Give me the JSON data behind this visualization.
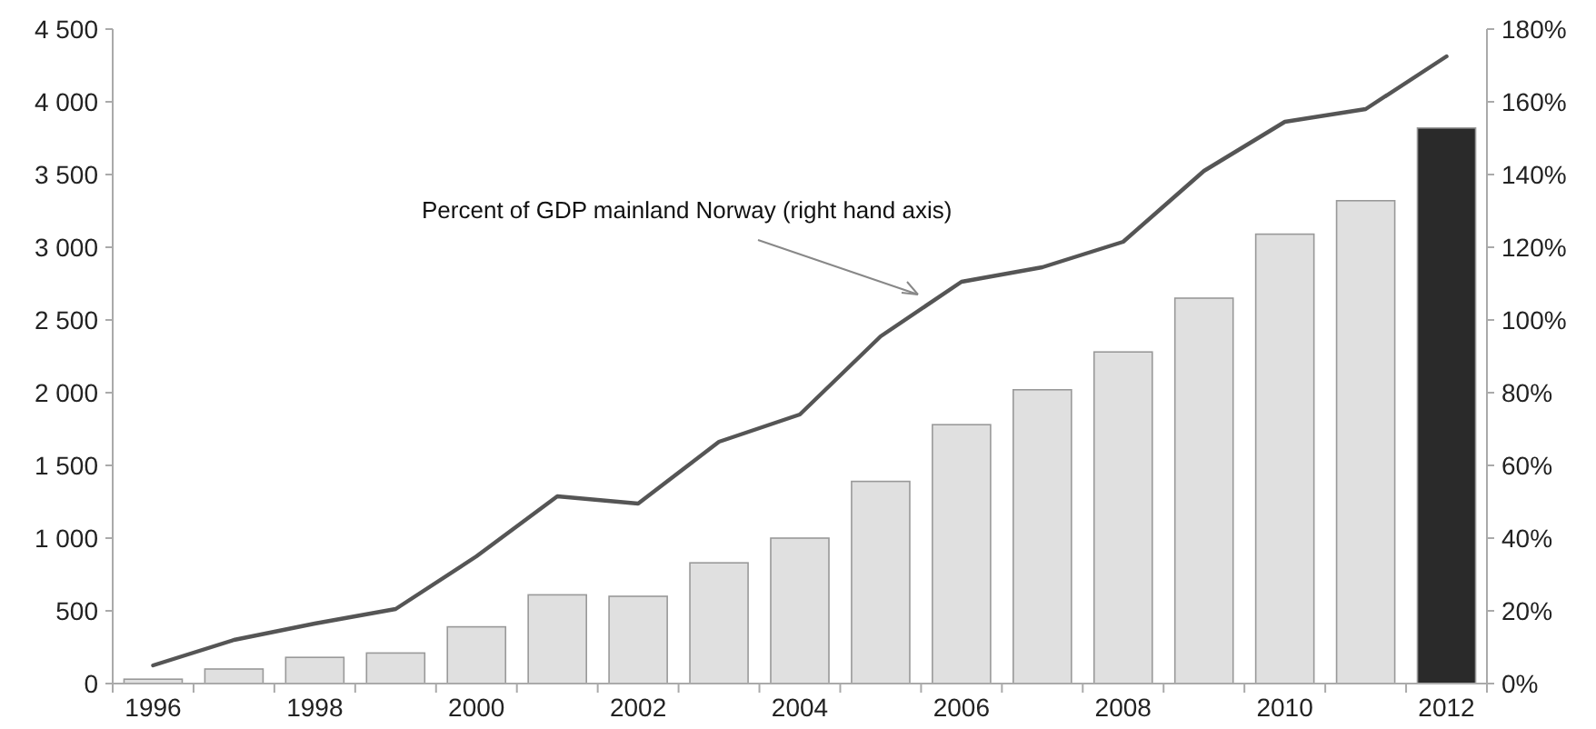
{
  "chart_data": {
    "type": "bar",
    "categories": [
      "1996",
      null,
      "1998",
      null,
      "2000",
      null,
      "2002",
      null,
      "2004",
      null,
      "2006",
      null,
      "2008",
      null,
      "2010",
      null,
      "2012"
    ],
    "series": [
      {
        "colors": [
          "#e0e0e0",
          "#e0e0e0",
          "#e0e0e0",
          "#e0e0e0",
          "#e0e0e0",
          "#e0e0e0",
          "#e0e0e0",
          "#e0e0e0",
          "#e0e0e0",
          "#e0e0e0",
          "#e0e0e0",
          "#e0e0e0",
          "#e0e0e0",
          "#e0e0e0",
          "#e0e0e0",
          "#e0e0e0",
          "#2a2a2a"
        ],
        "values": [
          30,
          100,
          180,
          210,
          390,
          610,
          600,
          830,
          1000,
          1390,
          1780,
          2020,
          2280,
          2650,
          3090,
          3320,
          3820
        ]
      },
      {
        "type": "line",
        "axis": "y2",
        "color": "#555555",
        "values": [
          5,
          12,
          16.5,
          20.5,
          35,
          51.5,
          49.5,
          66.5,
          74,
          95.5,
          110.5,
          114.5,
          121.5,
          141,
          154.5,
          158,
          172.5
        ]
      }
    ],
    "ylim": [
      0,
      4500
    ],
    "yticks": [
      {
        "value": 0,
        "label": "0"
      },
      {
        "value": 500,
        "label": "500"
      },
      {
        "value": 1000,
        "label": "1 000"
      },
      {
        "value": 1500,
        "label": "1 500"
      },
      {
        "value": 2000,
        "label": "2 000"
      },
      {
        "value": 2500,
        "label": "2 500"
      },
      {
        "value": 3000,
        "label": "3 000"
      },
      {
        "value": 3500,
        "label": "3 500"
      },
      {
        "value": 4000,
        "label": "4 000"
      },
      {
        "value": 4500,
        "label": "4 500"
      }
    ],
    "y2lim": [
      0,
      180
    ],
    "y2ticks": [
      {
        "value": 0,
        "label": "0%"
      },
      {
        "value": 20,
        "label": "20%"
      },
      {
        "value": 40,
        "label": "40%"
      },
      {
        "value": 60,
        "label": "60%"
      },
      {
        "value": 80,
        "label": "80%"
      },
      {
        "value": 100,
        "label": "100%"
      },
      {
        "value": 120,
        "label": "120%"
      },
      {
        "value": 140,
        "label": "140%"
      },
      {
        "value": 160,
        "label": "160%"
      },
      {
        "value": 180,
        "label": "180%"
      }
    ],
    "annotations": [
      "Percent of GDP mainland Norway (right hand axis)"
    ],
    "grid": false
  }
}
